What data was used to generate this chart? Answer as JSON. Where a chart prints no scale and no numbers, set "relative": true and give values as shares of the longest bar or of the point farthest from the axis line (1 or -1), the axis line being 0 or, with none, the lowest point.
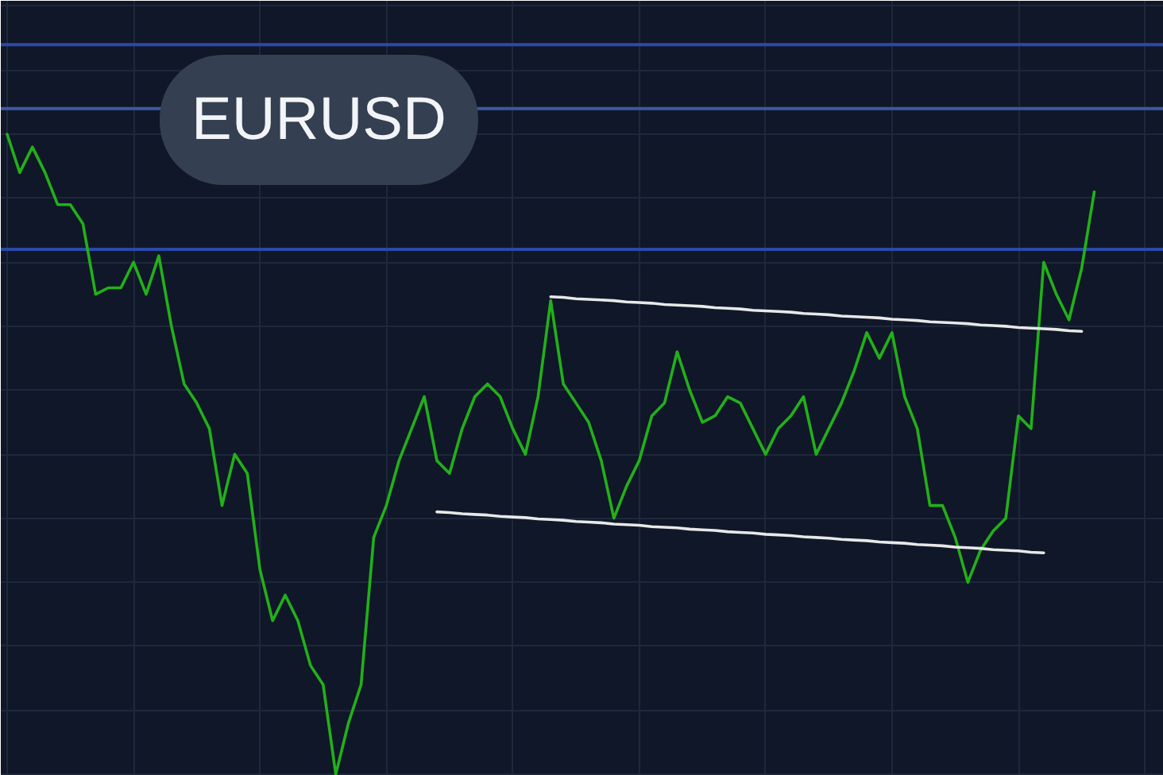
{
  "chart_data": {
    "type": "line",
    "title": "EURUSD",
    "relative": true,
    "grid": true,
    "categories": [
      null,
      null,
      null,
      null,
      null,
      null,
      null,
      null,
      null,
      null,
      null,
      null,
      null,
      null,
      null,
      null,
      null,
      null,
      null,
      null,
      null,
      null,
      null,
      null,
      null,
      null,
      null,
      null,
      null,
      null,
      null,
      null,
      null,
      null,
      null,
      null,
      null,
      null,
      null,
      null,
      null,
      null,
      null,
      null,
      null,
      null,
      null,
      null,
      null,
      null,
      null,
      null,
      null,
      null,
      null,
      null,
      null,
      null,
      null,
      null,
      null,
      null,
      null,
      null,
      null,
      null,
      null,
      null,
      null,
      null,
      null,
      null,
      null,
      null,
      null,
      null,
      null,
      null,
      null,
      null,
      null,
      null,
      null,
      null,
      null,
      null,
      null,
      null,
      null,
      null,
      null,
      null
    ],
    "series": [
      {
        "color": "#22b01a",
        "values": [
          1.0,
          0.94,
          0.98,
          0.94,
          0.89,
          0.89,
          0.86,
          0.75,
          0.76,
          0.76,
          0.8,
          0.75,
          0.81,
          0.7,
          0.61,
          0.58,
          0.54,
          0.42,
          0.5,
          0.47,
          0.32,
          0.24,
          0.28,
          0.24,
          0.17,
          0.14,
          0.0,
          0.08,
          0.14,
          0.37,
          0.42,
          0.49,
          0.54,
          0.59,
          0.49,
          0.47,
          0.54,
          0.59,
          0.61,
          0.59,
          0.54,
          0.5,
          0.59,
          0.74,
          0.61,
          0.58,
          0.55,
          0.49,
          0.4,
          0.45,
          0.49,
          0.56,
          0.58,
          0.66,
          0.6,
          0.55,
          0.56,
          0.59,
          0.58,
          0.54,
          0.5,
          0.54,
          0.56,
          0.59,
          0.5,
          0.54,
          0.58,
          0.63,
          0.69,
          0.65,
          0.69,
          0.59,
          0.54,
          0.42,
          0.42,
          0.37,
          0.3,
          0.35,
          0.38,
          0.4,
          0.56,
          0.54,
          0.8,
          0.75,
          0.71,
          0.79,
          0.91,
          null,
          null,
          null,
          null,
          null
        ]
      },
      {
        "color": "#e8e8e8",
        "values": [
          null,
          null,
          null,
          null,
          null,
          null,
          null,
          null,
          null,
          null,
          null,
          null,
          null,
          null,
          null,
          null,
          null,
          null,
          null,
          null,
          null,
          null,
          null,
          null,
          null,
          null,
          null,
          null,
          null,
          null,
          null,
          null,
          null,
          null,
          null,
          null,
          null,
          null,
          null,
          null,
          null,
          null,
          null,
          0.746,
          0.745,
          0.743,
          0.742,
          0.741,
          0.74,
          0.738,
          0.737,
          0.736,
          0.734,
          0.733,
          0.732,
          0.731,
          0.729,
          0.728,
          0.727,
          0.725,
          0.724,
          0.723,
          0.722,
          0.72,
          0.719,
          0.718,
          0.716,
          0.715,
          0.714,
          0.713,
          0.711,
          0.71,
          0.709,
          0.707,
          0.706,
          0.705,
          0.704,
          0.702,
          0.701,
          0.7,
          0.698,
          0.697,
          0.696,
          0.695,
          0.693,
          0.692,
          null,
          null,
          null,
          null,
          null,
          null
        ]
      },
      {
        "color": "#e8e8e8",
        "values": [
          null,
          null,
          null,
          null,
          null,
          null,
          null,
          null,
          null,
          null,
          null,
          null,
          null,
          null,
          null,
          null,
          null,
          null,
          null,
          null,
          null,
          null,
          null,
          null,
          null,
          null,
          null,
          null,
          null,
          null,
          null,
          null,
          null,
          null,
          0.41,
          0.409,
          0.407,
          0.406,
          0.405,
          0.403,
          0.402,
          0.401,
          0.399,
          0.398,
          0.397,
          0.395,
          0.394,
          0.393,
          0.391,
          0.39,
          0.389,
          0.387,
          0.386,
          0.385,
          0.383,
          0.382,
          0.381,
          0.379,
          0.378,
          0.377,
          0.375,
          0.374,
          0.373,
          0.371,
          0.37,
          0.369,
          0.367,
          0.366,
          0.365,
          0.363,
          0.362,
          0.361,
          0.359,
          0.358,
          0.357,
          0.355,
          0.354,
          0.353,
          0.351,
          0.35,
          0.349,
          0.347,
          0.346,
          null,
          null,
          null,
          null,
          null,
          null,
          null,
          null,
          null
        ]
      }
    ],
    "ref_lines": [
      {
        "axis": "y",
        "value": 1.14,
        "color": "#2a4aa8"
      },
      {
        "axis": "y",
        "value": 1.04,
        "color": "#3a5aa0"
      },
      {
        "axis": "y",
        "value": 0.82,
        "color": "#2a4aa8"
      }
    ]
  }
}
